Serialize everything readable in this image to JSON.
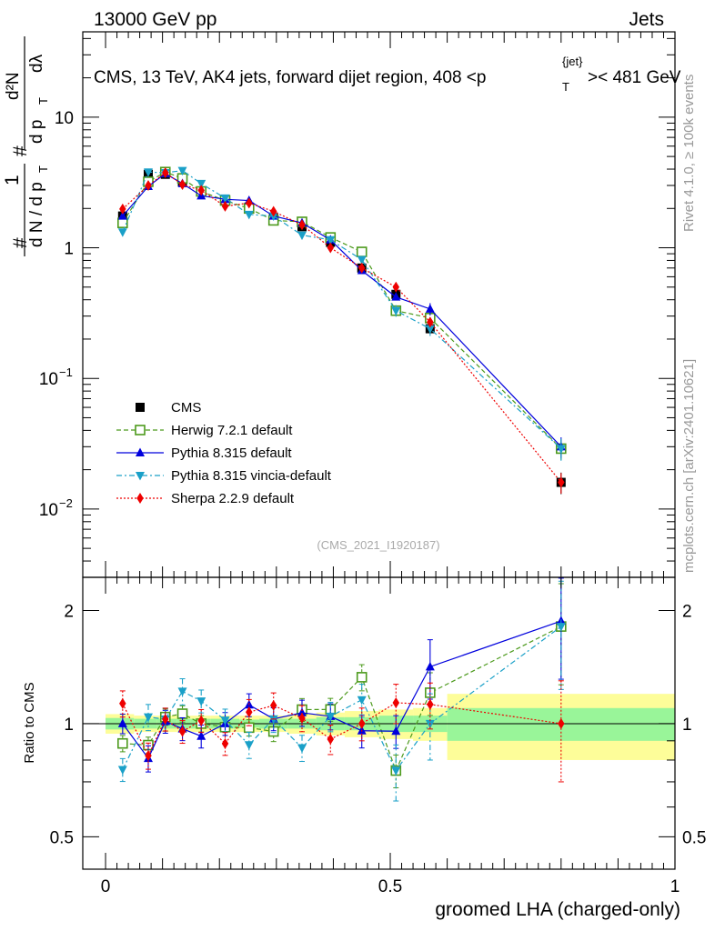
{
  "header": {
    "left": "13000 GeV pp",
    "right": "Jets"
  },
  "side_labels": {
    "rivet": "Rivet 4.1.0, ≥ 100k events",
    "mcplots": "mcplots.cern.ch [arXiv:2401.10621]"
  },
  "title": {
    "main": "CMS, 13 TeV, AK4 jets, forward dijet region, 408 <p",
    "sup": "{jet}",
    "sub": "T",
    "tail": ">< 481 GeV"
  },
  "ylabel_top": {
    "hash1": "#",
    "one": "1",
    "dN": "d N / d p",
    "T1": "T",
    "hash2": "#",
    "d2N": "d²N",
    "dp": "d p",
    "T2": "T",
    "dlam": "dλ"
  },
  "watermark": "(CMS_2021_I1920187)",
  "ratio_ylabel": "Ratio to CMS",
  "xlabel": "groomed LHA (charged-only)",
  "colors": {
    "cms": "#000000",
    "herwig": "#4c9a1c",
    "pythia": "#0000dd",
    "vincia": "#1aa0c8",
    "sherpa": "#ee0000",
    "band_inner": "#99f599",
    "band_outer": "#fdfd99"
  },
  "legend": [
    {
      "key": "cms",
      "label": "CMS"
    },
    {
      "key": "herwig",
      "label": "Herwig 7.2.1 default"
    },
    {
      "key": "pythia",
      "label": "Pythia 8.315 default"
    },
    {
      "key": "vincia",
      "label": "Pythia 8.315 vincia-default"
    },
    {
      "key": "sherpa",
      "label": "Sherpa 2.2.9 default"
    }
  ],
  "chart_data": {
    "type": "scatter",
    "main_panel": {
      "yscale": "log",
      "ylim": [
        0.003,
        45
      ],
      "yticks": [
        {
          "value": 0.01,
          "label": "10",
          "sup": "−2"
        },
        {
          "value": 0.1,
          "label": "10",
          "sup": "−1"
        },
        {
          "value": 1,
          "label": "1",
          "sup": ""
        },
        {
          "value": 10,
          "label": "10",
          "sup": ""
        }
      ]
    },
    "ratio_panel": {
      "yscale": "log",
      "ylim": [
        0.41,
        2.45
      ],
      "yticks": [
        {
          "value": 0.5,
          "label": "0.5"
        },
        {
          "value": 1,
          "label": "1"
        },
        {
          "value": 2,
          "label": "2"
        }
      ]
    },
    "xlim": [
      -0.04,
      1.0
    ],
    "xticks": [
      {
        "value": 0,
        "label": "0"
      },
      {
        "value": 0.5,
        "label": "0.5"
      },
      {
        "value": 1,
        "label": "1"
      }
    ],
    "bins": [
      {
        "lo": 0.0,
        "hi": 0.05,
        "x": 0.03
      },
      {
        "lo": 0.05,
        "hi": 0.09,
        "x": 0.075
      },
      {
        "lo": 0.09,
        "hi": 0.125,
        "x": 0.105
      },
      {
        "lo": 0.125,
        "hi": 0.15,
        "x": 0.135
      },
      {
        "lo": 0.15,
        "hi": 0.185,
        "x": 0.168
      },
      {
        "lo": 0.185,
        "hi": 0.235,
        "x": 0.21
      },
      {
        "lo": 0.235,
        "hi": 0.27,
        "x": 0.252
      },
      {
        "lo": 0.27,
        "hi": 0.32,
        "x": 0.295
      },
      {
        "lo": 0.32,
        "hi": 0.37,
        "x": 0.345
      },
      {
        "lo": 0.37,
        "hi": 0.42,
        "x": 0.395
      },
      {
        "lo": 0.42,
        "hi": 0.48,
        "x": 0.45
      },
      {
        "lo": 0.48,
        "hi": 0.54,
        "x": 0.51
      },
      {
        "lo": 0.54,
        "hi": 0.6,
        "x": 0.57
      },
      {
        "lo": 0.6,
        "hi": 1.0,
        "x": 0.8
      }
    ],
    "band_inner": [
      0.035,
      0.03,
      0.03,
      0.03,
      0.03,
      0.03,
      0.025,
      0.03,
      0.03,
      0.04,
      0.04,
      0.05,
      0.05,
      0.1
    ],
    "band_outer": [
      0.06,
      0.05,
      0.05,
      0.05,
      0.05,
      0.05,
      0.05,
      0.05,
      0.06,
      0.07,
      0.08,
      0.09,
      0.1,
      0.2
    ],
    "series": [
      {
        "key": "cms",
        "name": "CMS",
        "marker": "square-filled",
        "dash": "none",
        "values": [
          1.75,
          3.65,
          3.65,
          3.2,
          2.7,
          2.35,
          2.05,
          1.7,
          1.45,
          1.1,
          0.7,
          0.44,
          0.24,
          0.016
        ],
        "errors": [
          0.05,
          0.08,
          0.08,
          0.07,
          0.06,
          0.05,
          0.05,
          0.04,
          0.04,
          0.03,
          0.03,
          0.03,
          0.02,
          0.003
        ]
      },
      {
        "key": "herwig",
        "name": "Herwig 7.2.1 default",
        "marker": "square-open",
        "dash": "5,3",
        "values": [
          1.55,
          3.2,
          3.8,
          3.4,
          2.7,
          2.3,
          2.0,
          1.62,
          1.58,
          1.2,
          0.93,
          0.33,
          0.29,
          0.029
        ],
        "ratio_errors": [
          0.05,
          0.05,
          0.05,
          0.05,
          0.05,
          0.05,
          0.05,
          0.06,
          0.07,
          0.07,
          0.08,
          0.1,
          0.13,
          0.3
        ]
      },
      {
        "key": "pythia",
        "name": "Pythia 8.315 default",
        "marker": "triangle-up",
        "dash": "none",
        "values": [
          1.75,
          2.95,
          3.7,
          3.1,
          2.5,
          2.35,
          2.3,
          1.75,
          1.55,
          1.15,
          0.67,
          0.42,
          0.34,
          0.03
        ],
        "ratio_errors": [
          0.06,
          0.08,
          0.07,
          0.07,
          0.07,
          0.07,
          0.07,
          0.07,
          0.08,
          0.08,
          0.1,
          0.1,
          0.18,
          0.3
        ]
      },
      {
        "key": "vincia",
        "name": "Pythia 8.315 vincia-default",
        "marker": "triangle-down",
        "dash": "6,3,2,3",
        "values": [
          1.32,
          3.8,
          3.75,
          3.9,
          3.1,
          2.4,
          1.8,
          1.75,
          1.25,
          1.15,
          0.81,
          0.33,
          0.24,
          0.029
        ],
        "ratio_errors": [
          0.07,
          0.08,
          0.07,
          0.08,
          0.07,
          0.07,
          0.08,
          0.08,
          0.08,
          0.09,
          0.1,
          0.17,
          0.2,
          0.32
        ]
      },
      {
        "key": "sherpa",
        "name": "Sherpa 2.2.9 default",
        "marker": "diamond",
        "dash": "2,2",
        "values": [
          1.98,
          3.0,
          3.75,
          3.05,
          2.75,
          2.08,
          2.2,
          1.9,
          1.5,
          1.0,
          0.7,
          0.5,
          0.27,
          0.016
        ],
        "ratio_errors": [
          0.08,
          0.08,
          0.07,
          0.07,
          0.07,
          0.07,
          0.08,
          0.08,
          0.08,
          0.09,
          0.1,
          0.12,
          0.14,
          0.3
        ]
      }
    ]
  }
}
